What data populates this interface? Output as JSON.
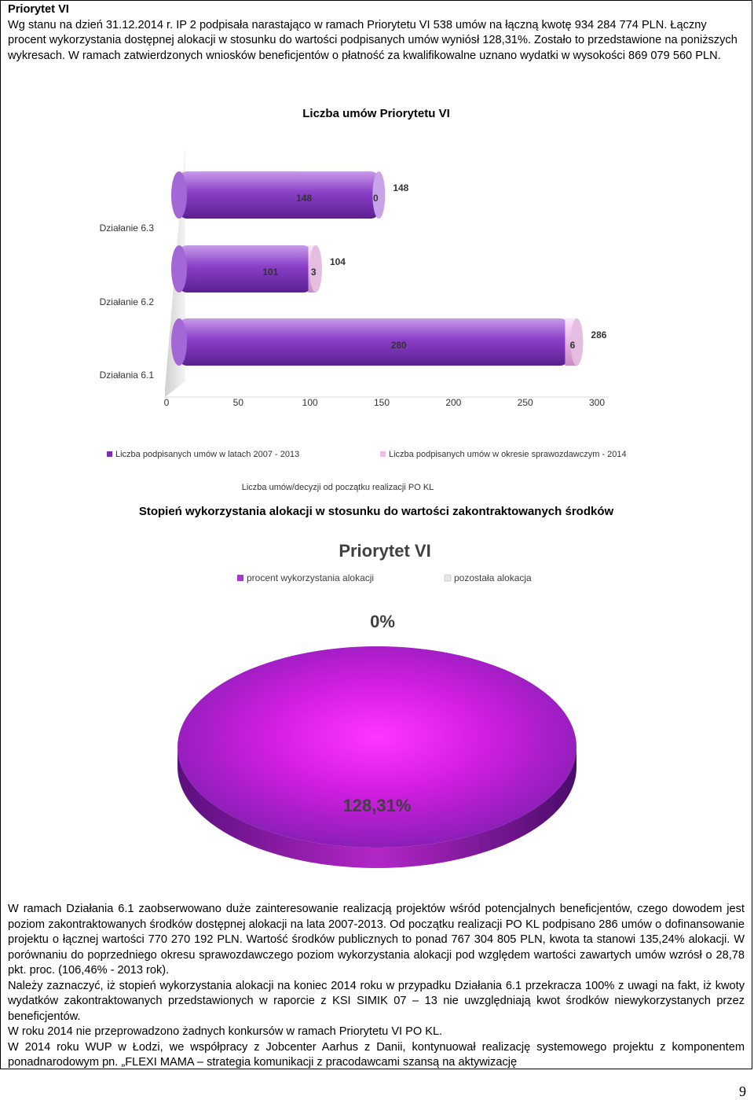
{
  "header": {
    "title": "Priorytet VI",
    "paragraph": "Wg stanu na dzień 31.12.2014 r. IP 2 podpisała narastająco w ramach Priorytetu VI 538 umów na łączną kwotę 934 284 774 PLN. Łączny procent wykorzystania dostępnej alokacji w stosunku do wartości podpisanych umów wyniósł 128,31%. Zostało to przedstawione na poniższych wykresach. W ramach zatwierdzonych wniosków beneficjentów o płatność za kwalifikowalne uznano wydatki w wysokości 869 079 560 PLN."
  },
  "chart_data": [
    {
      "type": "bar",
      "title": "Liczba umów Priorytetu VI",
      "xlabel": "Liczba umów/decyzji od początku realizacji PO KL",
      "categories": [
        "Działanie 6.3",
        "Działanie 6.2",
        "Działania 6.1"
      ],
      "series": [
        {
          "name": "Liczba podpisanych umów w latach 2007 - 2013",
          "values": [
            148,
            101,
            280
          ]
        },
        {
          "name": "Liczba podpisanych umów w okresie sprawozdawczym - 2014",
          "values": [
            0,
            3,
            6
          ]
        }
      ],
      "totals": [
        "148",
        "104",
        "286"
      ],
      "xticks": [
        "0",
        "50",
        "100",
        "150",
        "200",
        "250",
        "300"
      ],
      "xlim": [
        0,
        320
      ],
      "stacked": true,
      "legend": "bottom",
      "colors": {
        "main": "#7a2fb2",
        "report": "#e9bfe6"
      }
    },
    {
      "type": "pie",
      "heading": "Stopień wykorzystania alokacji w stosunku do wartości zakontraktowanych środków",
      "title": "Priorytet VI",
      "labels": [
        "procent wykorzystania alokacji",
        "pozostała alokacja"
      ],
      "values": [
        128.31,
        0
      ],
      "data_labels": [
        "128,31%",
        "0%"
      ],
      "legend": "top",
      "colors": {
        "main": "#9a2fc8",
        "rest": "#e6e6e6"
      }
    }
  ],
  "footer": {
    "p1": "W ramach Działania 6.1 zaobserwowano duże zainteresowanie realizacją projektów wśród potencjalnych beneficjentów, czego dowodem jest poziom zakontraktowanych środków dostępnej alokacji na lata 2007-2013. Od początku realizacji PO KL podpisano 286 umów o dofinansowanie projektu o łącznej wartości 770 270 192 PLN. Wartość środków publicznych to ponad 767 304 805 PLN, kwota ta stanowi 135,24% alokacji. W porównaniu do poprzedniego okresu sprawozdawczego poziom wykorzystania alokacji pod względem wartości zawartych umów wzrósł o 28,78 pkt. proc. (106,46% - 2013 rok).",
    "p2": "Należy zaznaczyć, iż stopień wykorzystania alokacji na koniec 2014 roku w przypadku Działania 6.1 przekracza 100% z uwagi na fakt, iż kwoty wydatków zakontraktowanych przedstawionych w raporcie z KSI SIMIK 07 – 13 nie uwzględniają kwot środków niewykorzystanych przez beneficjentów.",
    "p3": "W roku 2014 nie przeprowadzono żadnych konkursów w ramach Priorytetu VI PO KL.",
    "p4": "W 2014 roku WUP w Łodzi, we współpracy z Jobcenter Aarhus z Danii, kontynuował realizację systemowego projektu z komponentem ponadnarodowym pn. „FLEXI MAMA – strategia komunikacji z pracodawcami szansą na aktywizację"
  },
  "page_number": "9"
}
